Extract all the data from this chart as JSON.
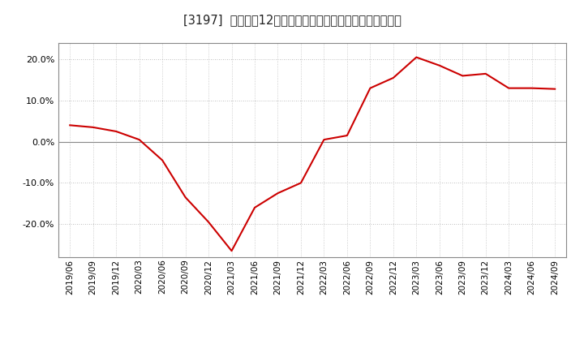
{
  "title": "[3197]  売上高の12か月移動合計の対前年同期増減率の推移",
  "background_color": "#ffffff",
  "line_color": "#cc0000",
  "ylim": [
    -0.28,
    0.24
  ],
  "yticks": [
    -0.2,
    -0.1,
    0.0,
    0.1,
    0.2
  ],
  "dates": [
    "2019/06",
    "2019/09",
    "2019/12",
    "2020/03",
    "2020/06",
    "2020/09",
    "2020/12",
    "2021/03",
    "2021/06",
    "2021/09",
    "2021/12",
    "2022/03",
    "2022/06",
    "2022/09",
    "2022/12",
    "2023/03",
    "2023/06",
    "2023/09",
    "2023/12",
    "2024/03",
    "2024/06",
    "2024/09"
  ],
  "values": [
    0.04,
    0.035,
    0.025,
    0.005,
    -0.045,
    -0.135,
    -0.195,
    -0.265,
    -0.16,
    -0.125,
    -0.1,
    0.005,
    0.015,
    0.13,
    0.155,
    0.205,
    0.185,
    0.16,
    0.165,
    0.13,
    0.13,
    0.128
  ]
}
